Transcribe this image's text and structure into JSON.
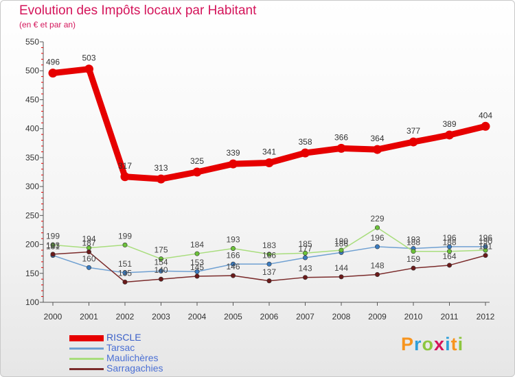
{
  "header": {
    "title": "Evolution des Impôts locaux par Habitant",
    "subtitle": "(en € et par an)"
  },
  "brand": {
    "name": "Proxiti",
    "letters": [
      "P",
      "r",
      "o",
      "x",
      "i",
      "t",
      "i"
    ],
    "colors": [
      "#f7941d",
      "#2e9fd9",
      "#8dc63f",
      "#d4145a",
      "#2e9fd9",
      "#f7941d",
      "#8dc63f"
    ]
  },
  "chart_data": {
    "type": "line",
    "title": "Evolution des Impôts locaux par Habitant",
    "subtitle": "(en € et par an)",
    "xlabel": "",
    "ylabel": "",
    "x": [
      "2000",
      "2001",
      "2002",
      "2003",
      "2004",
      "2005",
      "2006",
      "2007",
      "2008",
      "2009",
      "2010",
      "2011",
      "2012"
    ],
    "ylim": [
      100,
      550
    ],
    "yticks": [
      "100",
      "150",
      "200",
      "250",
      "300",
      "350",
      "400",
      "450",
      "500",
      "550"
    ],
    "grid": false,
    "legend_position": "bottom-left",
    "series": [
      {
        "name": "RISCLE",
        "color": "#e60000",
        "marker_color": "#e60000",
        "label_color": "#333333",
        "emphasis": "thick",
        "values": [
          496,
          503,
          317,
          313,
          325,
          339,
          341,
          358,
          366,
          364,
          377,
          389,
          404
        ],
        "labels": [
          "496",
          "503",
          "317",
          "313",
          "325",
          "339",
          "341",
          "358",
          "366",
          "364",
          "377",
          "389",
          "404"
        ]
      },
      {
        "name": "Tarsac",
        "color": "#6fa0d2",
        "marker_color": "#3a7bc0",
        "label_color": "#444444",
        "emphasis": "normal",
        "values": [
          181,
          160,
          151,
          154,
          153,
          166,
          166,
          177,
          186,
          196,
          193,
          196,
          196
        ],
        "labels": [
          "181",
          "160",
          "151",
          "154",
          "153",
          "166",
          "166",
          "177",
          "186",
          "196",
          "193",
          "196",
          "196"
        ]
      },
      {
        "name": "Maulichères",
        "color": "#a8dd7c",
        "marker_color": "#6cc23a",
        "label_color": "#444444",
        "emphasis": "normal",
        "values": [
          199,
          194,
          199,
          175,
          184,
          193,
          183,
          185,
          190,
          229,
          188,
          188,
          190
        ],
        "labels": [
          "199",
          "194",
          "199",
          "175",
          "184",
          "193",
          "183",
          "185",
          "190",
          "229",
          "188",
          "188",
          "190"
        ]
      },
      {
        "name": "Sarragachies",
        "color": "#7a2a2a",
        "marker_color": "#6b1a1a",
        "label_color": "#444444",
        "emphasis": "normal",
        "values": [
          183,
          187,
          135,
          140,
          145,
          146,
          137,
          143,
          144,
          148,
          159,
          164,
          181
        ],
        "labels": [
          "183",
          "187",
          "135",
          "140",
          "145",
          "146",
          "137",
          "143",
          "144",
          "148",
          "159",
          "164",
          "181"
        ]
      }
    ]
  }
}
